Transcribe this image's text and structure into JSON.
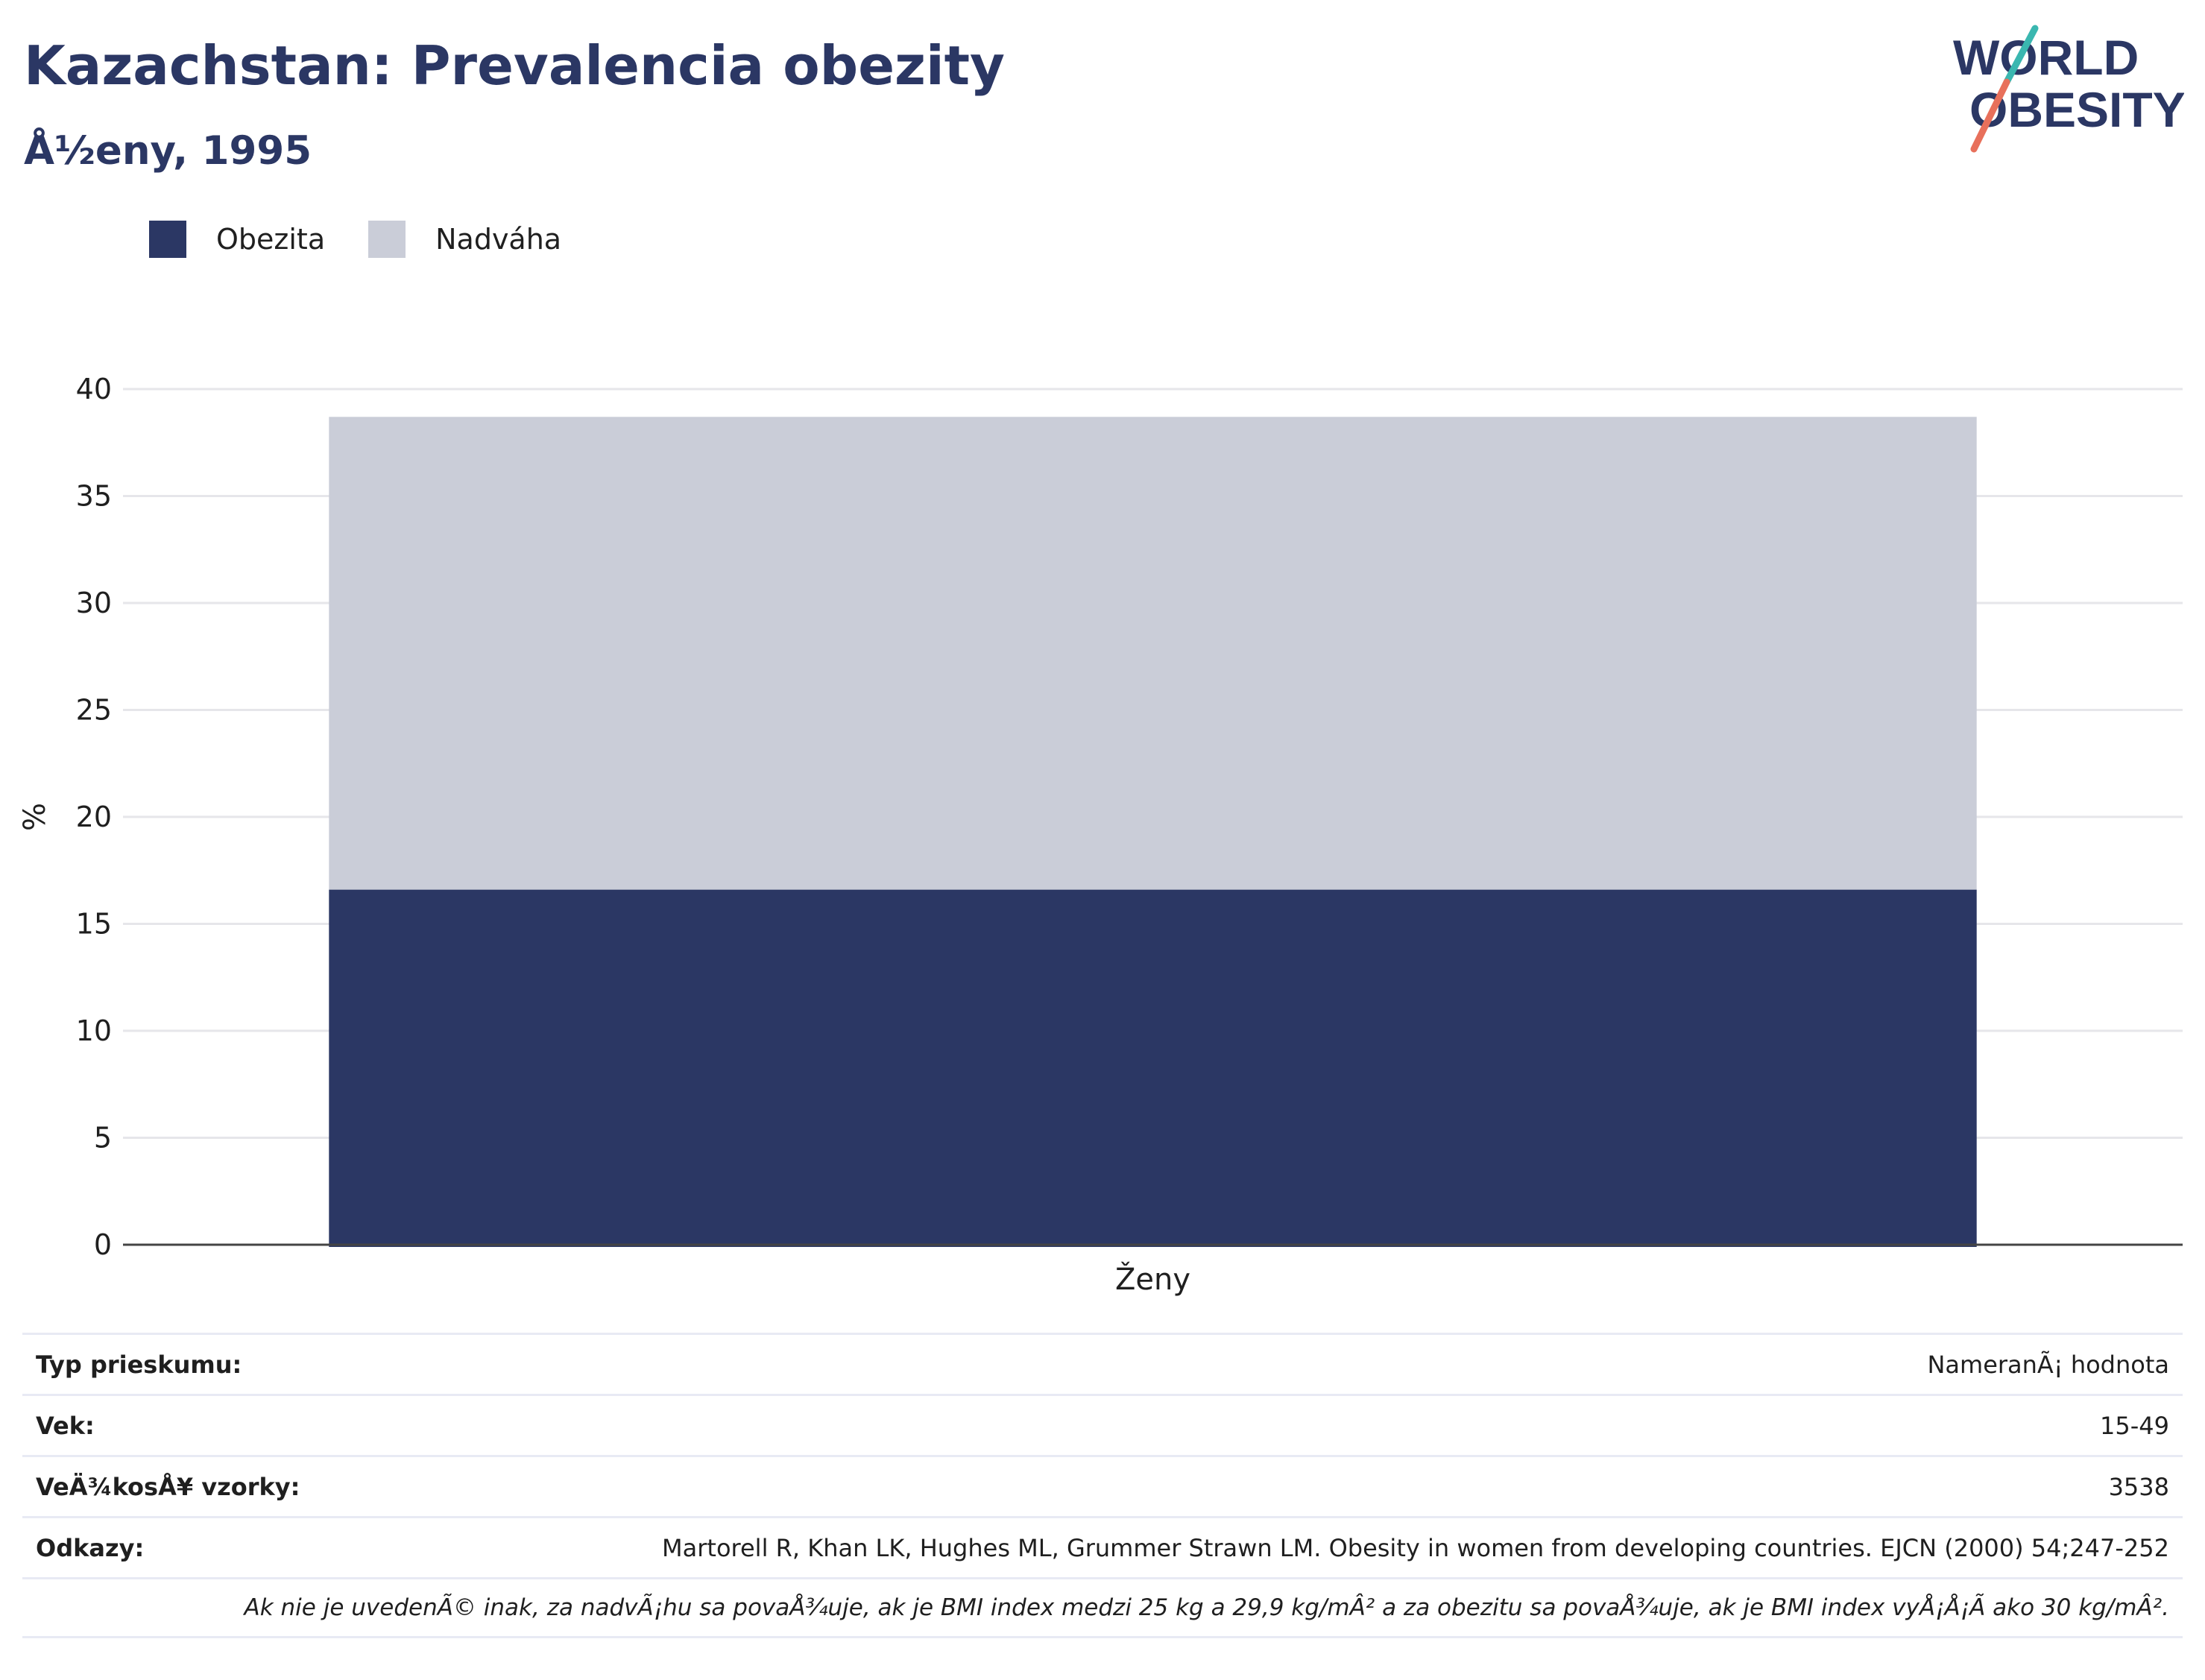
{
  "header": {
    "title": "Kazachstan: Prevalencia obezity",
    "subtitle": "Å½eny, 1995",
    "logo_line1": "WORLD",
    "logo_line2": "OBESITY"
  },
  "colors": {
    "obezita": "#2b3764",
    "nadvaha": "#cacdd8",
    "title": "#2b3764",
    "logo_slash_top": "#3ab7b0",
    "logo_slash_bottom": "#e8705b"
  },
  "chart_data": {
    "type": "bar",
    "stacked": true,
    "categories": [
      "Ženy"
    ],
    "series": [
      {
        "name": "Obezita",
        "values": [
          16.6
        ]
      },
      {
        "name": "Nadváha",
        "values": [
          22.1
        ]
      }
    ],
    "xlabel": "",
    "ylabel": "%",
    "ylim": [
      0,
      40
    ],
    "yticks": [
      0,
      5,
      10,
      15,
      20,
      25,
      30,
      35,
      40
    ],
    "grid": true,
    "legend": "top-left"
  },
  "meta": {
    "rows": [
      {
        "label": "Typ prieskumu:",
        "value": "NameranÃ¡ hodnota"
      },
      {
        "label": "Vek:",
        "value": "15-49"
      },
      {
        "label": "VeÄ¾kosÅ¥ vzorky:",
        "value": "3538"
      },
      {
        "label": "Odkazy:",
        "value": "Martorell R, Khan LK, Hughes ML, Grummer Strawn LM. Obesity in women from developing countries. EJCN (2000) 54;247-252"
      }
    ],
    "note": "Ak nie je uvedenÃ© inak, za nadvÃ¡hu sa povaÅ¾uje, ak je BMI index medzi 25 kg a 29,9 kg/mÂ² a za obezitu sa povaÅ¾uje, ak je BMI index vyÅ¡Å¡Ã ako 30 kg/mÂ²."
  }
}
